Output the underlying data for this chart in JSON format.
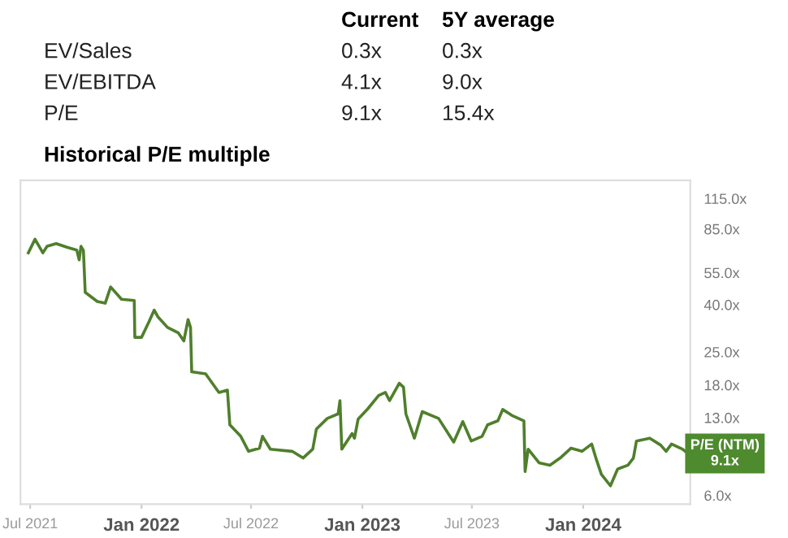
{
  "chart_data": [
    {
      "type": "other",
      "categories": [
        "EV/Sales",
        "EV/EBITDA",
        "P/E"
      ],
      "series": [
        {
          "name": "Current",
          "values": [
            0.3,
            4.1,
            9.1
          ],
          "value_labels": [
            "0.3x",
            "4.1x",
            "9.1x"
          ]
        },
        {
          "name": "5Y average",
          "values": [
            0.3,
            9.0,
            15.4
          ],
          "value_labels": [
            "0.3x",
            "9.0x",
            "15.4x"
          ]
        }
      ]
    },
    {
      "type": "line",
      "title": "Historical P/E multiple",
      "series": [
        {
          "color": "#4f7f2c",
          "x": [
            "2021-06-28",
            "2021-07-09",
            "2021-07-22",
            "2021-07-29",
            "2021-08-13",
            "2021-08-31",
            "2021-09-16",
            "2021-09-20",
            "2021-09-23",
            "2021-09-27",
            "2021-09-30",
            "2021-10-20",
            "2021-11-02",
            "2021-11-11",
            "2021-11-29",
            "2021-12-20",
            "2021-12-21",
            "2022-01-01",
            "2022-01-13",
            "2022-01-22",
            "2022-01-28",
            "2022-02-13",
            "2022-03-03",
            "2022-03-12",
            "2022-03-19",
            "2022-03-23",
            "2022-03-25",
            "2022-04-17",
            "2022-05-09",
            "2022-05-23",
            "2022-05-27",
            "2022-06-14",
            "2022-06-27",
            "2022-07-15",
            "2022-07-20",
            "2022-08-02",
            "2022-09-07",
            "2022-09-25",
            "2022-10-11",
            "2022-10-17",
            "2022-11-04",
            "2022-11-22",
            "2022-11-25",
            "2022-11-28",
            "2022-12-15",
            "2022-12-19",
            "2022-12-25",
            "2023-01-10",
            "2023-01-28",
            "2023-02-08",
            "2023-02-15",
            "2023-03-03",
            "2023-03-10",
            "2023-03-14",
            "2023-03-28",
            "2023-04-10",
            "2023-05-07",
            "2023-06-01",
            "2023-06-16",
            "2023-06-30",
            "2023-07-18",
            "2023-07-27",
            "2023-08-13",
            "2023-08-21",
            "2023-09-05",
            "2023-09-25",
            "2023-09-27",
            "2023-10-02",
            "2023-10-20",
            "2023-11-07",
            "2023-11-24",
            "2023-12-12",
            "2023-12-30",
            "2024-01-15",
            "2024-01-22",
            "2024-01-31",
            "2024-02-15",
            "2024-02-27",
            "2024-03-15",
            "2024-03-24",
            "2024-03-29",
            "2024-04-20",
            "2024-05-08",
            "2024-05-17",
            "2024-05-26",
            "2024-06-13",
            "2024-06-22"
          ],
          "values": [
            67.0,
            76.7,
            67.0,
            71.5,
            73.5,
            70.8,
            68.9,
            62.5,
            71.5,
            68.6,
            45.2,
            41.3,
            40.6,
            47.7,
            42.2,
            41.7,
            28.9,
            28.9,
            33.6,
            37.9,
            35.5,
            31.9,
            30.2,
            27.9,
            34.5,
            31.9,
            20.5,
            20.1,
            16.7,
            17.1,
            12.1,
            10.8,
            9.3,
            9.6,
            10.8,
            9.5,
            9.3,
            8.7,
            9.5,
            11.6,
            12.9,
            13.5,
            15.4,
            9.5,
            11.1,
            10.6,
            12.8,
            14.2,
            16.2,
            16.7,
            15.4,
            18.3,
            17.6,
            13.5,
            10.6,
            13.8,
            12.9,
            10.2,
            12.5,
            10.3,
            10.8,
            12.1,
            12.6,
            14.1,
            13.3,
            12.6,
            7.6,
            9.5,
            8.3,
            8.1,
            8.7,
            9.6,
            9.3,
            10.0,
            8.7,
            7.4,
            6.6,
            7.8,
            8.1,
            8.7,
            10.3,
            10.6,
            9.9,
            9.3,
            10.0,
            9.5,
            9.1
          ]
        }
      ],
      "log": "y",
      "xlim": [
        "2021-06-15",
        "2024-06-26"
      ],
      "xticks": [
        {
          "value": "2021-07-01",
          "label": "Jul 2021"
        },
        {
          "value": "2022-01-01",
          "label": "Jan 2022"
        },
        {
          "value": "2022-07-01",
          "label": "Jul 2022"
        },
        {
          "value": "2023-01-01",
          "label": "Jan 2023"
        },
        {
          "value": "2023-07-01",
          "label": "Jul 2023"
        },
        {
          "value": "2024-01-01",
          "label": "Jan 2024"
        }
      ],
      "ylim": [
        5.5,
        138
      ],
      "yticks": [
        {
          "value": 6,
          "label": "6.0x"
        },
        {
          "value": 13,
          "label": "13.0x"
        },
        {
          "value": 18,
          "label": "18.0x"
        },
        {
          "value": 25,
          "label": "25.0x"
        },
        {
          "value": 40,
          "label": "40.0x"
        },
        {
          "value": 55,
          "label": "55.0x"
        },
        {
          "value": 85,
          "label": "85.0x"
        },
        {
          "value": 115,
          "label": "115.0x"
        }
      ],
      "annotations": [
        {
          "text": "P/E (NTM)\n9.1x",
          "x": "2024-06-22",
          "y": 9.1
        }
      ],
      "grid": false,
      "legend": false
    }
  ]
}
